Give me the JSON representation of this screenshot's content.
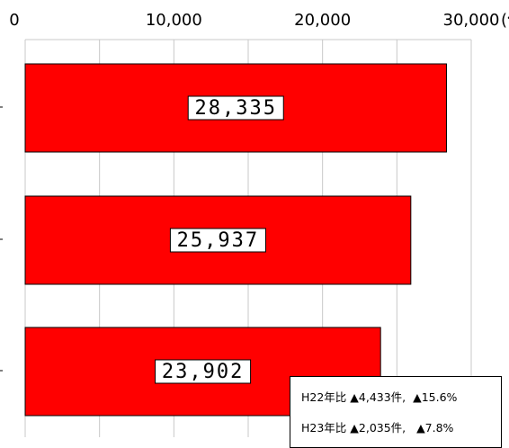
{
  "chart_data": {
    "type": "bar",
    "orientation": "horizontal",
    "categories": [
      "",
      "",
      ""
    ],
    "values": [
      28335,
      25937,
      23902
    ],
    "value_labels": [
      "28,335",
      "25,937",
      "23,902"
    ],
    "xlim": [
      0,
      30000
    ],
    "x_ticks": [
      0,
      10000,
      20000,
      30000
    ],
    "x_tick_labels": [
      "0",
      "10,000",
      "20,000",
      "30,000"
    ],
    "x_unit": "(件)",
    "grid": true,
    "bar_color": "#ff0000",
    "notes": [
      "H22年比 ▲4,433件,  ▲15.6%",
      "H23年比 ▲2,035件,   ▲7.8%"
    ]
  }
}
